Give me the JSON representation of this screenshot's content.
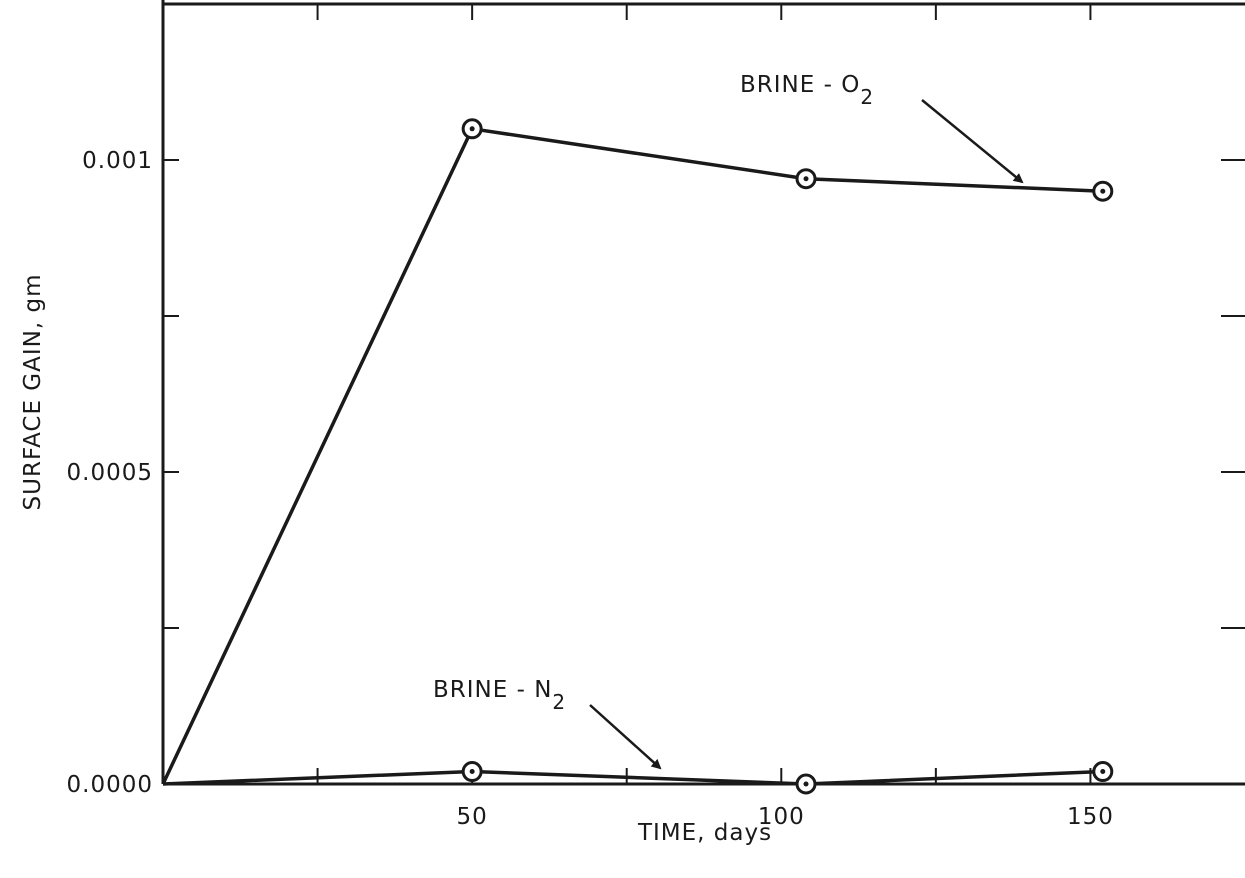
{
  "chart_data": {
    "type": "line",
    "xlabel": "TIME, days",
    "ylabel": "SURFACE GAIN, gm",
    "xlim": [
      0,
      175
    ],
    "ylim": [
      0,
      0.00125
    ],
    "x_ticks": [
      50,
      100,
      150
    ],
    "x_tick_labels": [
      "50",
      "100",
      "150"
    ],
    "x_minor_ticks": [
      25,
      75,
      125
    ],
    "y_ticks": [
      0,
      0.0005,
      0.001
    ],
    "y_tick_labels": [
      "0.0000",
      "0.0005",
      "0.001"
    ],
    "y_minor_ticks": [
      0.00025,
      0.00075
    ],
    "grid": false,
    "series": [
      {
        "name": "BRINE - O2",
        "label_main": "BRINE - O",
        "label_sub": "2",
        "x": [
          0,
          50,
          104,
          152
        ],
        "y": [
          0,
          0.00105,
          0.00097,
          0.00095
        ]
      },
      {
        "name": "BRINE - N2",
        "label_main": "BRINE - N",
        "label_sub": "2",
        "x": [
          0,
          50,
          104,
          152
        ],
        "y": [
          0,
          2e-05,
          0,
          2e-05
        ]
      }
    ]
  }
}
